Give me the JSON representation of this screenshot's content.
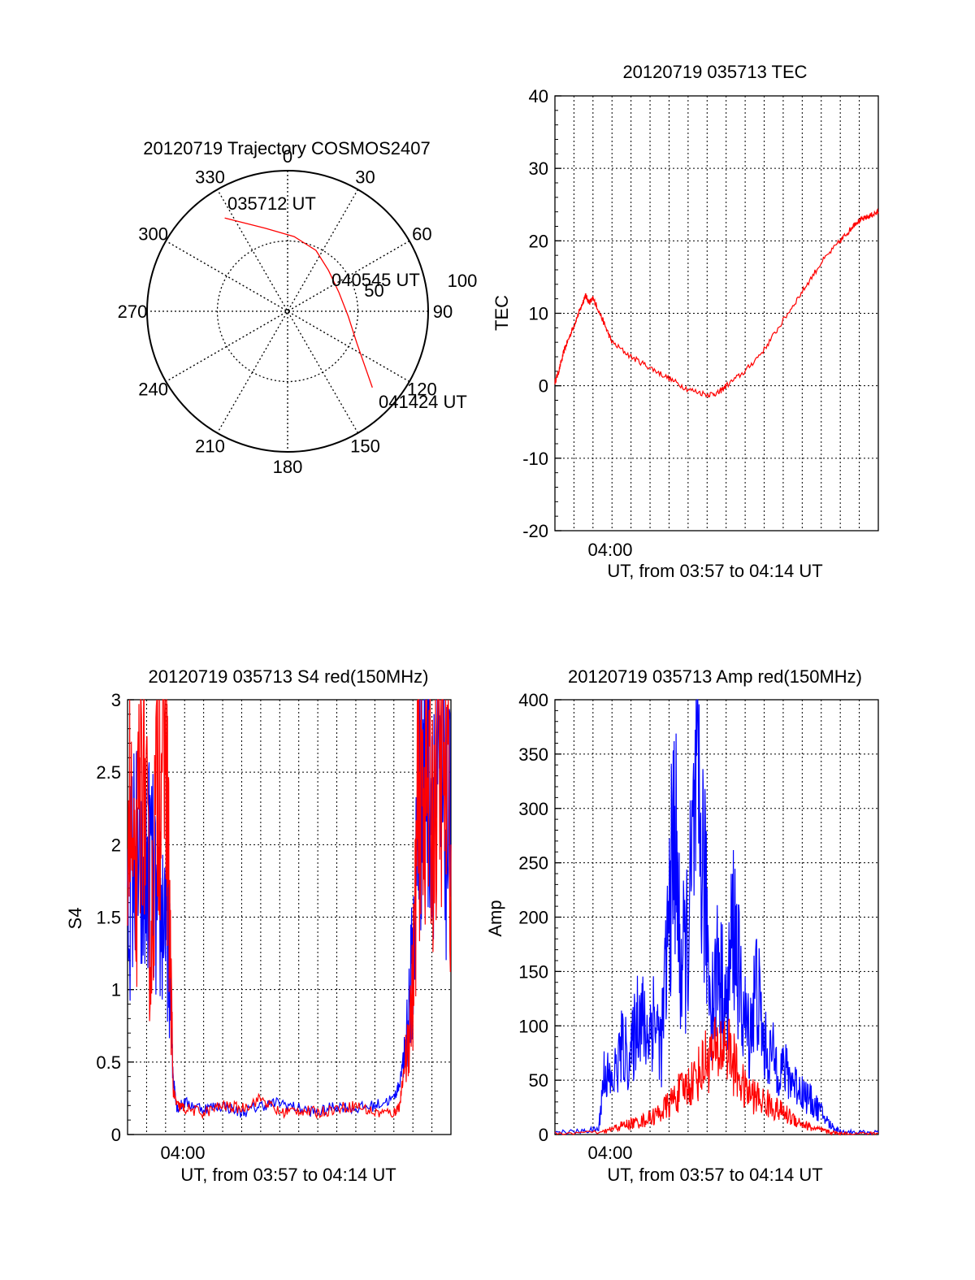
{
  "colors": {
    "red": "#ff0000",
    "blue": "#0000ff",
    "axis": "#000000",
    "grid": "#000000"
  },
  "chart_data": [
    {
      "id": "polar",
      "type": "polar",
      "title": "20120719 Trajectory COSMOS2407",
      "azimuth_labels": [
        "0",
        "30",
        "60",
        "90",
        "120",
        "150",
        "180",
        "210",
        "240",
        "270",
        "300",
        "330"
      ],
      "elevation_rings": [
        0,
        50
      ],
      "elevation_ring_labels": [
        "50",
        "100"
      ],
      "trajectory": [
        [
          326,
          18
        ],
        [
          345,
          35
        ],
        [
          5,
          42
        ],
        [
          25,
          47
        ],
        [
          45,
          53
        ],
        [
          70,
          55
        ],
        [
          95,
          51
        ],
        [
          115,
          41
        ],
        [
          132,
          17
        ]
      ],
      "annotations": [
        "035712 UT",
        "040545 UT",
        "041424 UT"
      ],
      "series_color": "#ff0000"
    },
    {
      "id": "tec",
      "type": "line",
      "title": "20120719 035713 TEC",
      "ylabel": "TEC",
      "xlabel": "UT, from 03:57 to 04:14 UT",
      "x_tick_labels": [
        "04:00"
      ],
      "ylim": [
        -20,
        40
      ],
      "y_ticks": [
        -20,
        -10,
        0,
        10,
        20,
        30,
        40
      ],
      "xlim": [
        0,
        17
      ],
      "series": [
        {
          "color": "#ff0000",
          "x": [
            0,
            0.2,
            0.5,
            0.8,
            1.1,
            1.4,
            1.6,
            1.8,
            2.0,
            2.2,
            2.6,
            3.0,
            4.0,
            5.0,
            6.0,
            7.0,
            8.0,
            8.6,
            9.0,
            10.0,
            11.0,
            12.0,
            13.0,
            14.0,
            15.0,
            15.5,
            15.8,
            16.2,
            16.6,
            17.0
          ],
          "y": [
            0.5,
            2,
            5,
            7,
            9,
            11,
            12.5,
            11.5,
            12,
            11,
            8.5,
            6,
            4,
            2.5,
            1,
            -0.5,
            -1.2,
            -1,
            0,
            2,
            5,
            9,
            13,
            17,
            20,
            21.5,
            22.5,
            23,
            23.5,
            24
          ]
        }
      ]
    },
    {
      "id": "s4",
      "type": "line",
      "title": "20120719 035713 S4 red(150MHz)",
      "ylabel": "S4",
      "xlabel": "UT, from 03:57 to 04:14 UT",
      "x_tick_labels": [
        "04:00"
      ],
      "ylim": [
        0,
        3
      ],
      "y_ticks": [
        0,
        0.5,
        1,
        1.5,
        2,
        2.5,
        3
      ],
      "xlim": [
        0,
        17
      ],
      "series": [
        {
          "color": "#0000ff",
          "x": [
            0,
            0.4,
            0.8,
            1.2,
            1.6,
            2.0,
            2.2,
            2.4,
            2.6,
            3,
            4,
            5,
            6,
            7,
            8,
            9,
            10,
            11,
            12,
            13,
            14,
            14.3,
            14.6,
            15.0,
            15.3,
            15.6,
            16,
            16.5,
            17
          ],
          "y": [
            1.5,
            2.0,
            1.6,
            1.9,
            1.4,
            1.6,
            1.2,
            0.4,
            0.18,
            0.22,
            0.18,
            0.2,
            0.15,
            0.2,
            0.22,
            0.18,
            0.15,
            0.2,
            0.18,
            0.2,
            0.25,
            0.35,
            0.6,
            1.2,
            2.2,
            2.8,
            2.5,
            2.2,
            2.0
          ]
        },
        {
          "color": "#ff0000",
          "x": [
            0,
            0.4,
            0.8,
            1.2,
            1.6,
            2.0,
            2.2,
            2.4,
            2.6,
            3,
            4,
            5,
            6,
            7,
            8,
            9,
            10,
            11,
            12,
            13,
            14,
            14.3,
            14.6,
            15.0,
            15.3,
            15.6,
            16,
            16.5,
            17
          ],
          "y": [
            2.5,
            1.5,
            2.8,
            1.2,
            2.6,
            2.9,
            1.5,
            0.3,
            0.2,
            0.18,
            0.15,
            0.2,
            0.18,
            0.25,
            0.15,
            0.17,
            0.15,
            0.18,
            0.2,
            0.15,
            0.15,
            0.2,
            0.5,
            1.0,
            2.4,
            2.5,
            2.2,
            2.7,
            2.0
          ]
        }
      ]
    },
    {
      "id": "amp",
      "type": "line",
      "title": "20120719 035713 Amp red(150MHz)",
      "ylabel": "Amp",
      "xlabel": "UT, from 03:57 to 04:14 UT",
      "x_tick_labels": [
        "04:00"
      ],
      "ylim": [
        0,
        400
      ],
      "y_ticks": [
        0,
        50,
        100,
        150,
        200,
        250,
        300,
        350,
        400
      ],
      "xlim": [
        0,
        17
      ],
      "series": [
        {
          "color": "#0000ff",
          "x": [
            0,
            1.5,
            2.3,
            2.6,
            3.0,
            3.5,
            4.0,
            4.4,
            4.8,
            5.2,
            5.6,
            6.0,
            6.3,
            6.6,
            7.0,
            7.4,
            7.8,
            8.2,
            8.6,
            9.0,
            9.4,
            9.8,
            10.2,
            10.6,
            11.0,
            11.5,
            12.0,
            12.5,
            13.0,
            13.5,
            14.0,
            14.5,
            15,
            16,
            17
          ],
          "y": [
            2,
            3,
            5,
            60,
            45,
            80,
            70,
            120,
            90,
            110,
            80,
            200,
            290,
            150,
            180,
            300,
            250,
            120,
            160,
            110,
            200,
            120,
            90,
            140,
            80,
            70,
            60,
            50,
            40,
            30,
            20,
            8,
            3,
            2,
            2
          ]
        },
        {
          "color": "#ff0000",
          "x": [
            0,
            2.5,
            3.0,
            3.5,
            4.0,
            4.5,
            5.0,
            5.5,
            6.0,
            6.5,
            7.0,
            7.5,
            8.0,
            8.5,
            9.0,
            9.5,
            10.0,
            10.5,
            11.0,
            11.5,
            12.0,
            12.5,
            13.0,
            13.5,
            14.0,
            14.5,
            15,
            16,
            17
          ],
          "y": [
            1,
            2,
            5,
            8,
            10,
            12,
            15,
            20,
            28,
            38,
            45,
            55,
            70,
            75,
            85,
            60,
            40,
            35,
            30,
            25,
            20,
            15,
            10,
            6,
            4,
            2,
            1,
            1,
            1
          ]
        }
      ]
    }
  ]
}
